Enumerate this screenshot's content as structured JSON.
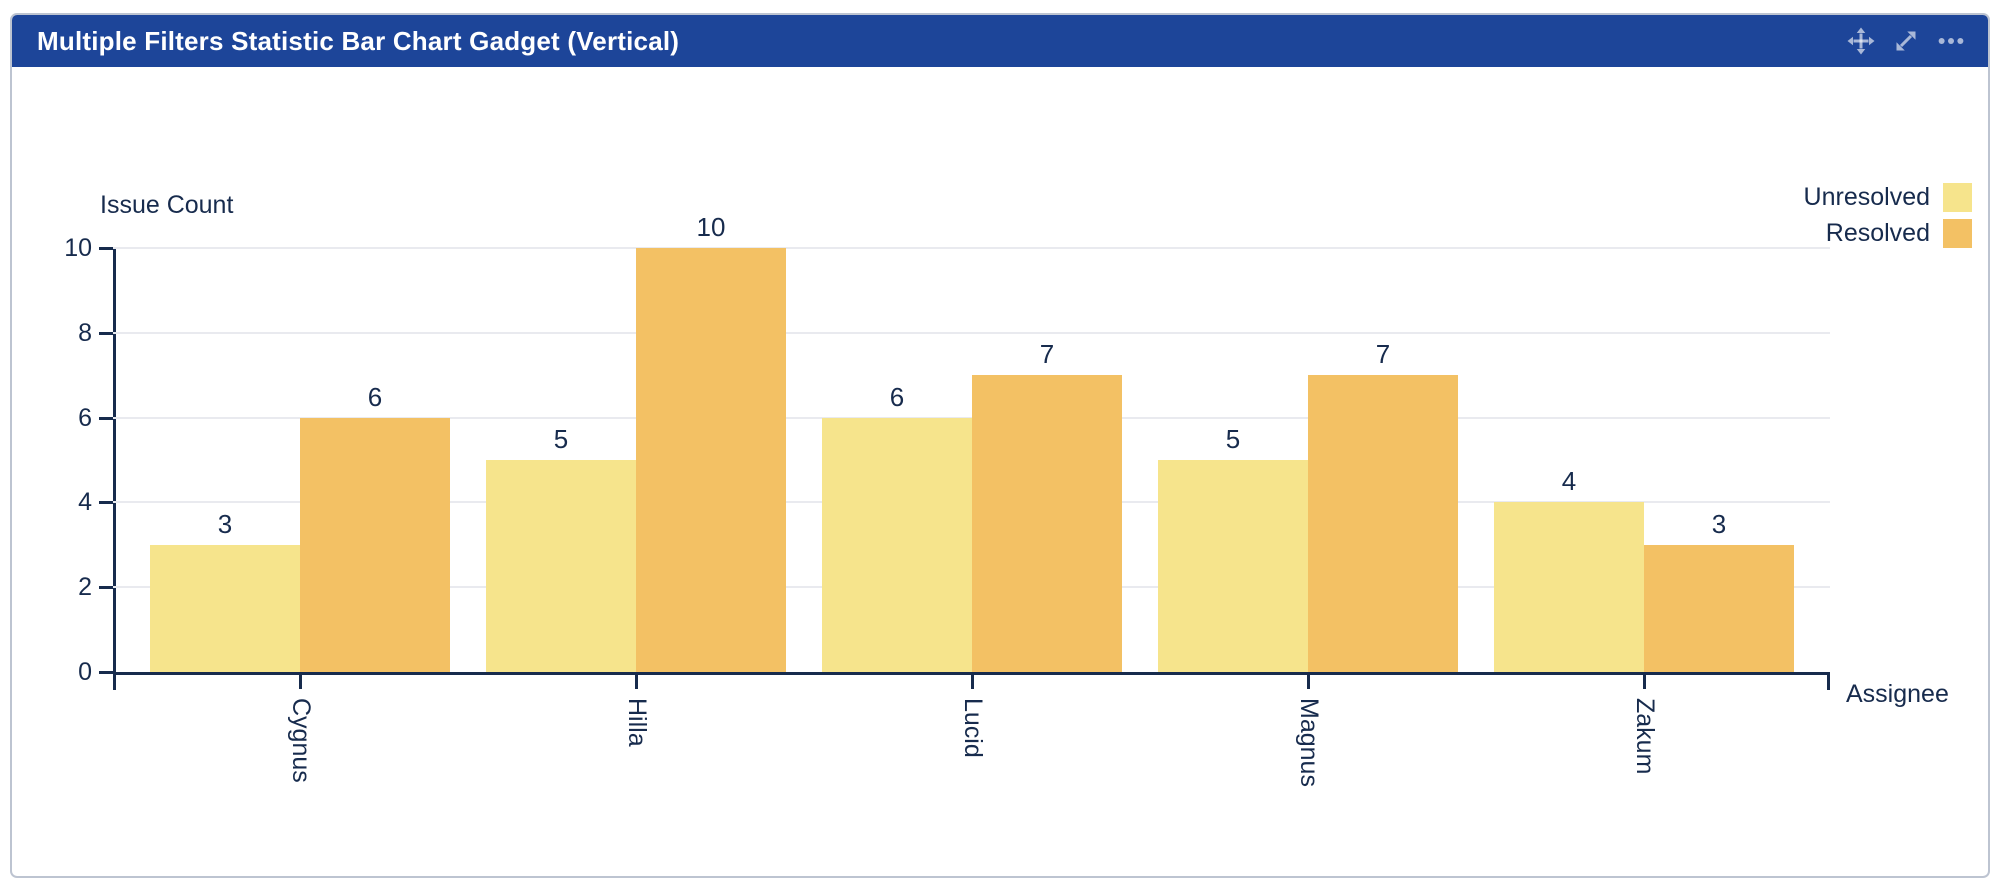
{
  "gadget": {
    "title": "Multiple Filters Statistic Bar Chart Gadget (Vertical)",
    "header_icons": [
      {
        "name": "move-icon",
        "meaning": "drag to move gadget"
      },
      {
        "name": "expand-icon",
        "meaning": "expand gadget"
      },
      {
        "name": "more-options-icon",
        "meaning": "gadget menu"
      }
    ]
  },
  "chart_data": {
    "type": "bar",
    "title": "Multiple Filters Statistic Bar Chart Gadget (Vertical)",
    "ylabel": "Issue Count",
    "xlabel": "Assignee",
    "categories": [
      "Cygnus",
      "Hilla",
      "Lucid",
      "Magnus",
      "Zakum"
    ],
    "series": [
      {
        "name": "Unresolved",
        "color": "#f6e48c",
        "values": [
          3,
          5,
          6,
          5,
          4
        ]
      },
      {
        "name": "Resolved",
        "color": "#f3c164",
        "values": [
          6,
          10,
          7,
          7,
          3
        ]
      }
    ],
    "yticks": [
      0,
      2,
      4,
      6,
      8,
      10
    ],
    "ylim": [
      0,
      10
    ],
    "grid": true,
    "legend_position": "top-right",
    "bar_value_labels": true,
    "x_label_rotation": 90
  },
  "colors": {
    "header_bg": "#1d4599",
    "header_text": "#ffffff",
    "header_icon": "rgba(255,255,255,0.62)",
    "axis": "#172b4d",
    "text": "#172b4d",
    "gridline": "#e9eaef",
    "card_border": "#bdc4d1",
    "unresolved": "#f6e48c",
    "resolved": "#f3c164"
  }
}
